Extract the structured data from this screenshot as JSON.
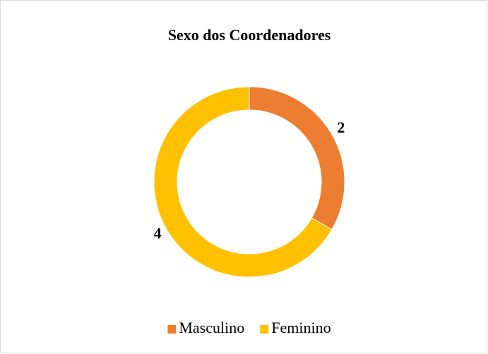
{
  "chart_data": {
    "type": "donut",
    "title": "Sexo dos Coordenadores",
    "categories": [
      "Masculino",
      "Feminino"
    ],
    "values": [
      2,
      4
    ],
    "colors": [
      "#ED7D31",
      "#FFC000"
    ],
    "legend": "bottom"
  }
}
